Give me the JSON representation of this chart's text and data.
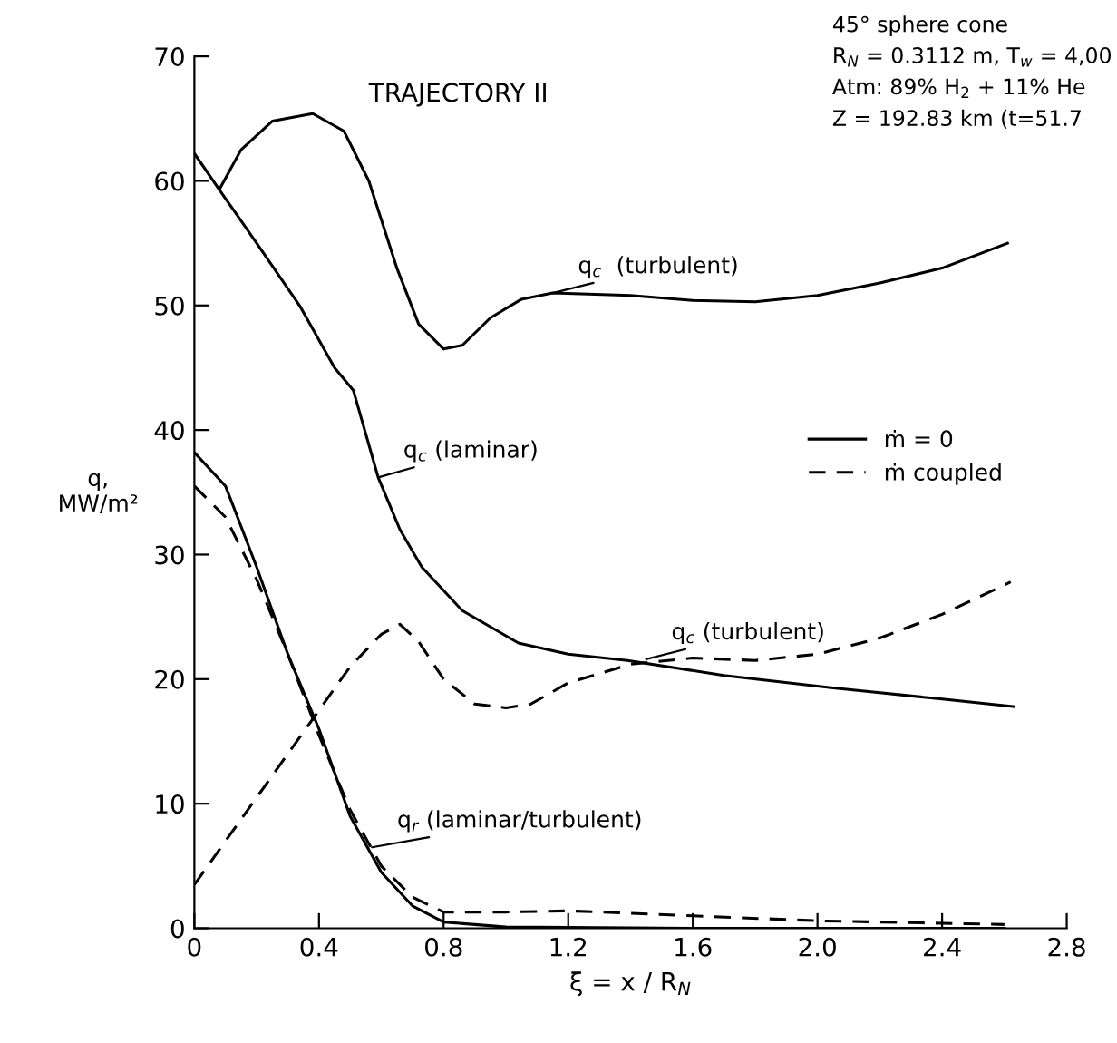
{
  "chart_data": {
    "type": "line",
    "title": "TRAJECTORY II",
    "xlabel": "ξ = x / R$_{N}$",
    "ylabel": "q,\nMW/m²",
    "xlim": [
      0,
      2.8
    ],
    "xticks": [
      0,
      0.4,
      0.8,
      1.2,
      1.6,
      {
        "value": 2,
        "label": "2.0"
      },
      2.4,
      2.8
    ],
    "ylim": [
      0,
      70
    ],
    "yticks": [
      0,
      10,
      20,
      30,
      40,
      50,
      60,
      70
    ],
    "legend": "center right",
    "series": [
      {
        "name": "ṁ = 0",
        "color": "#000000",
        "line_style": "solid",
        "x": [
          0.08,
          0.15,
          0.25,
          0.38,
          0.48,
          0.56,
          0.65,
          0.72,
          0.8,
          0.86,
          0.95,
          1.05,
          1.15,
          1.4,
          1.6,
          1.8,
          2.0,
          2.2,
          2.4,
          2.61
        ],
        "values": [
          59.3,
          62.5,
          64.8,
          65.4,
          64,
          60,
          53,
          48.5,
          46.5,
          46.8,
          49,
          50.5,
          51,
          50.8,
          50.4,
          50.3,
          50.8,
          51.8,
          53,
          55
        ]
      },
      {
        "color": "#000000",
        "line_style": "solid",
        "x": [
          0,
          0.08,
          0.2,
          0.34,
          0.45,
          0.51,
          0.59,
          0.66,
          0.73,
          0.86,
          1.04,
          1.2,
          1.39,
          1.7,
          2.05,
          2.4,
          2.63
        ],
        "values": [
          62.2,
          59.3,
          55,
          49.9,
          45,
          43.2,
          36.2,
          32,
          29,
          25.5,
          22.9,
          22,
          21.5,
          20.3,
          19.3,
          18.4,
          17.8
        ]
      },
      {
        "color": "#000000",
        "line_style": "solid",
        "x": [
          0,
          0.1,
          0.2,
          0.3,
          0.4,
          0.5,
          0.6,
          0.7,
          0.8,
          1.0,
          1.6,
          2.6
        ],
        "values": [
          38.2,
          35.5,
          29,
          22,
          16,
          9,
          4.5,
          1.8,
          0.5,
          0.1,
          0,
          0
        ]
      },
      {
        "name": "ṁ coupled",
        "color": "#000000",
        "line_style": "dashed",
        "x": [
          0,
          0.1,
          0.2,
          0.3,
          0.4,
          0.5,
          0.6,
          0.66,
          0.72,
          0.8,
          0.9,
          1.0,
          1.08,
          1.2,
          1.4,
          1.6,
          1.8,
          2.0,
          2.2,
          2.4,
          2.62
        ],
        "values": [
          3.5,
          7,
          10.5,
          14,
          17.5,
          21,
          23.6,
          24.4,
          23,
          20,
          18,
          17.7,
          18,
          19.7,
          21.2,
          21.7,
          21.5,
          22,
          23.3,
          25.2,
          27.8
        ]
      },
      {
        "color": "#000000",
        "line_style": "dashed",
        "x": [
          0,
          0.1,
          0.2,
          0.3,
          0.4,
          0.5,
          0.6,
          0.7,
          0.8,
          1.0,
          1.2,
          1.6,
          2.0,
          2.4,
          2.6
        ],
        "values": [
          35.5,
          33,
          28,
          22,
          15.5,
          9.5,
          5,
          2.5,
          1.3,
          1.3,
          1.4,
          1.0,
          0.6,
          0.4,
          0.3
        ]
      }
    ],
    "annotations": [
      {
        "text": "q$_{c}$  (turbulent)",
        "x": 1.15,
        "y": 51
      },
      {
        "text": "q$_{c}$ (laminar)",
        "x": 0.59,
        "y": 36.2
      },
      {
        "text": "q$_{c}$ (turbulent)",
        "x": 1.45,
        "y": 21.6
      },
      {
        "text": "q$_{r}$ (laminar/turbulent)",
        "x": 0.57,
        "y": 6.5
      },
      "45° sphere cone",
      "R$_{N}$ = 0.3112 m, T$_{w}$ = 4,00",
      "Atm: 89% H$_{2}$ + 11% He",
      "Z = 192.83 km (t=51.7"
    ]
  }
}
